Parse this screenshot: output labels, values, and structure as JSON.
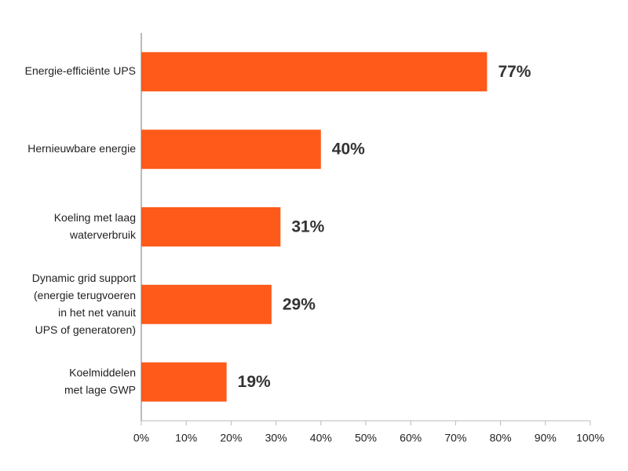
{
  "chart_data": {
    "type": "bar",
    "orientation": "horizontal",
    "categories": [
      "Energie-efficiënte UPS",
      "Hernieuwbare energie",
      "Koeling met laag\nwaterverbruik",
      "Dynamic grid support\n(energie terugvoeren\nin het net vanuit\nUPS of generatoren)",
      "Koelmiddelen\nmet lage GWP"
    ],
    "values": [
      77,
      40,
      31,
      29,
      19
    ],
    "value_labels": [
      "77%",
      "40%",
      "31%",
      "29%",
      "19%"
    ],
    "color": "#ff5a1a",
    "xlim": [
      0,
      100
    ],
    "xticks": [
      {
        "value": 0,
        "label": "0%"
      },
      {
        "value": 10,
        "label": "10%"
      },
      {
        "value": 20,
        "label": "20%"
      },
      {
        "value": 30,
        "label": "30%"
      },
      {
        "value": 40,
        "label": "40%"
      },
      {
        "value": 50,
        "label": "50%"
      },
      {
        "value": 60,
        "label": "60%"
      },
      {
        "value": 70,
        "label": "70%"
      },
      {
        "value": 80,
        "label": "80%"
      },
      {
        "value": 90,
        "label": "90%"
      },
      {
        "value": 100,
        "label": "100%"
      }
    ],
    "grid": false
  }
}
